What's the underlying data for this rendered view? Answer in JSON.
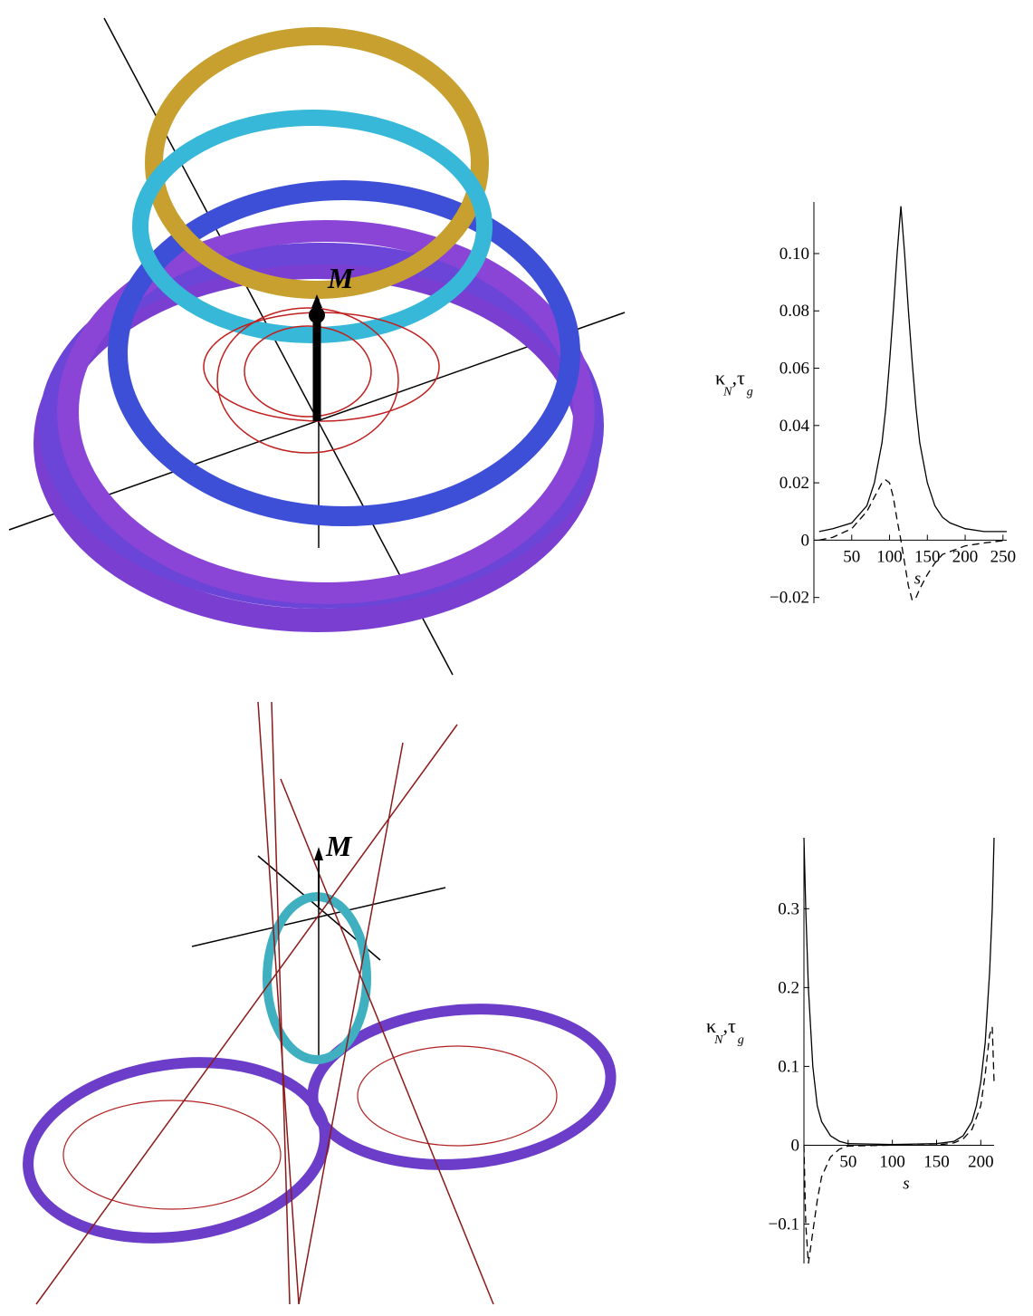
{
  "illustrations": [
    {
      "label": "M"
    },
    {
      "label": "M"
    }
  ],
  "chart_data": [
    {
      "type": "line",
      "x_label": "s",
      "y_label_parts": [
        "κ",
        "N",
        ",τ",
        "g"
      ],
      "x": [
        7,
        25,
        50,
        70,
        80,
        90,
        95,
        100,
        105,
        110,
        115,
        120,
        125,
        130,
        135,
        140,
        150,
        160,
        170,
        180,
        200,
        225,
        255
      ],
      "series": [
        {
          "color": "#000000",
          "dash": "none",
          "values": [
            0.003,
            0.004,
            0.006,
            0.012,
            0.02,
            0.034,
            0.046,
            0.062,
            0.08,
            0.1,
            0.1165,
            0.1,
            0.08,
            0.062,
            0.046,
            0.034,
            0.02,
            0.012,
            0.008,
            0.006,
            0.004,
            0.003,
            0.003
          ]
        },
        {
          "color": "#000000",
          "dash": "8 5",
          "values": [
            0,
            0.001,
            0.004,
            0.01,
            0.015,
            0.02,
            0.021,
            0.02,
            0.015,
            0.007,
            0,
            -0.008,
            -0.016,
            -0.021,
            -0.02,
            -0.017,
            -0.012,
            -0.008,
            -0.005,
            -0.004,
            -0.002,
            -0.001,
            0
          ]
        }
      ],
      "xlim": [
        0,
        255
      ],
      "ylim": [
        -0.022,
        0.118
      ],
      "xticks": [
        50,
        100,
        150,
        200,
        250
      ],
      "yticks": [
        {
          "value": -0.02,
          "label": "−0.02"
        },
        0,
        0.02,
        0.04,
        0.06,
        0.08,
        {
          "value": 0.1,
          "label": "0.10"
        }
      ]
    },
    {
      "type": "line",
      "x_label": "s",
      "y_label_parts": [
        "κ",
        "N",
        ",τ",
        "g"
      ],
      "x": [
        0,
        2,
        5,
        10,
        15,
        20,
        30,
        40,
        50,
        100,
        150,
        170,
        180,
        190,
        195,
        200,
        205,
        210,
        213,
        215
      ],
      "series": [
        {
          "color": "#000000",
          "dash": "none",
          "values": [
            0.39,
            0.3,
            0.2,
            0.1,
            0.05,
            0.03,
            0.012,
            0.005,
            0.002,
            0.001,
            0.002,
            0.005,
            0.012,
            0.03,
            0.05,
            0.08,
            0.13,
            0.22,
            0.3,
            0.39
          ]
        },
        {
          "color": "#000000",
          "dash": "8 5",
          "values": [
            0,
            -0.1,
            -0.15,
            -0.11,
            -0.07,
            -0.04,
            -0.015,
            -0.005,
            -0.001,
            0,
            0,
            0.003,
            0.008,
            0.02,
            0.035,
            0.05,
            0.09,
            0.14,
            0.15,
            0.08
          ]
        }
      ],
      "xlim": [
        0,
        215
      ],
      "ylim": [
        -0.15,
        0.39
      ],
      "xticks": [
        50,
        100,
        150,
        200
      ],
      "yticks": [
        {
          "value": -0.1,
          "label": "−0.1"
        },
        0,
        0.1,
        0.2,
        0.3
      ]
    }
  ]
}
